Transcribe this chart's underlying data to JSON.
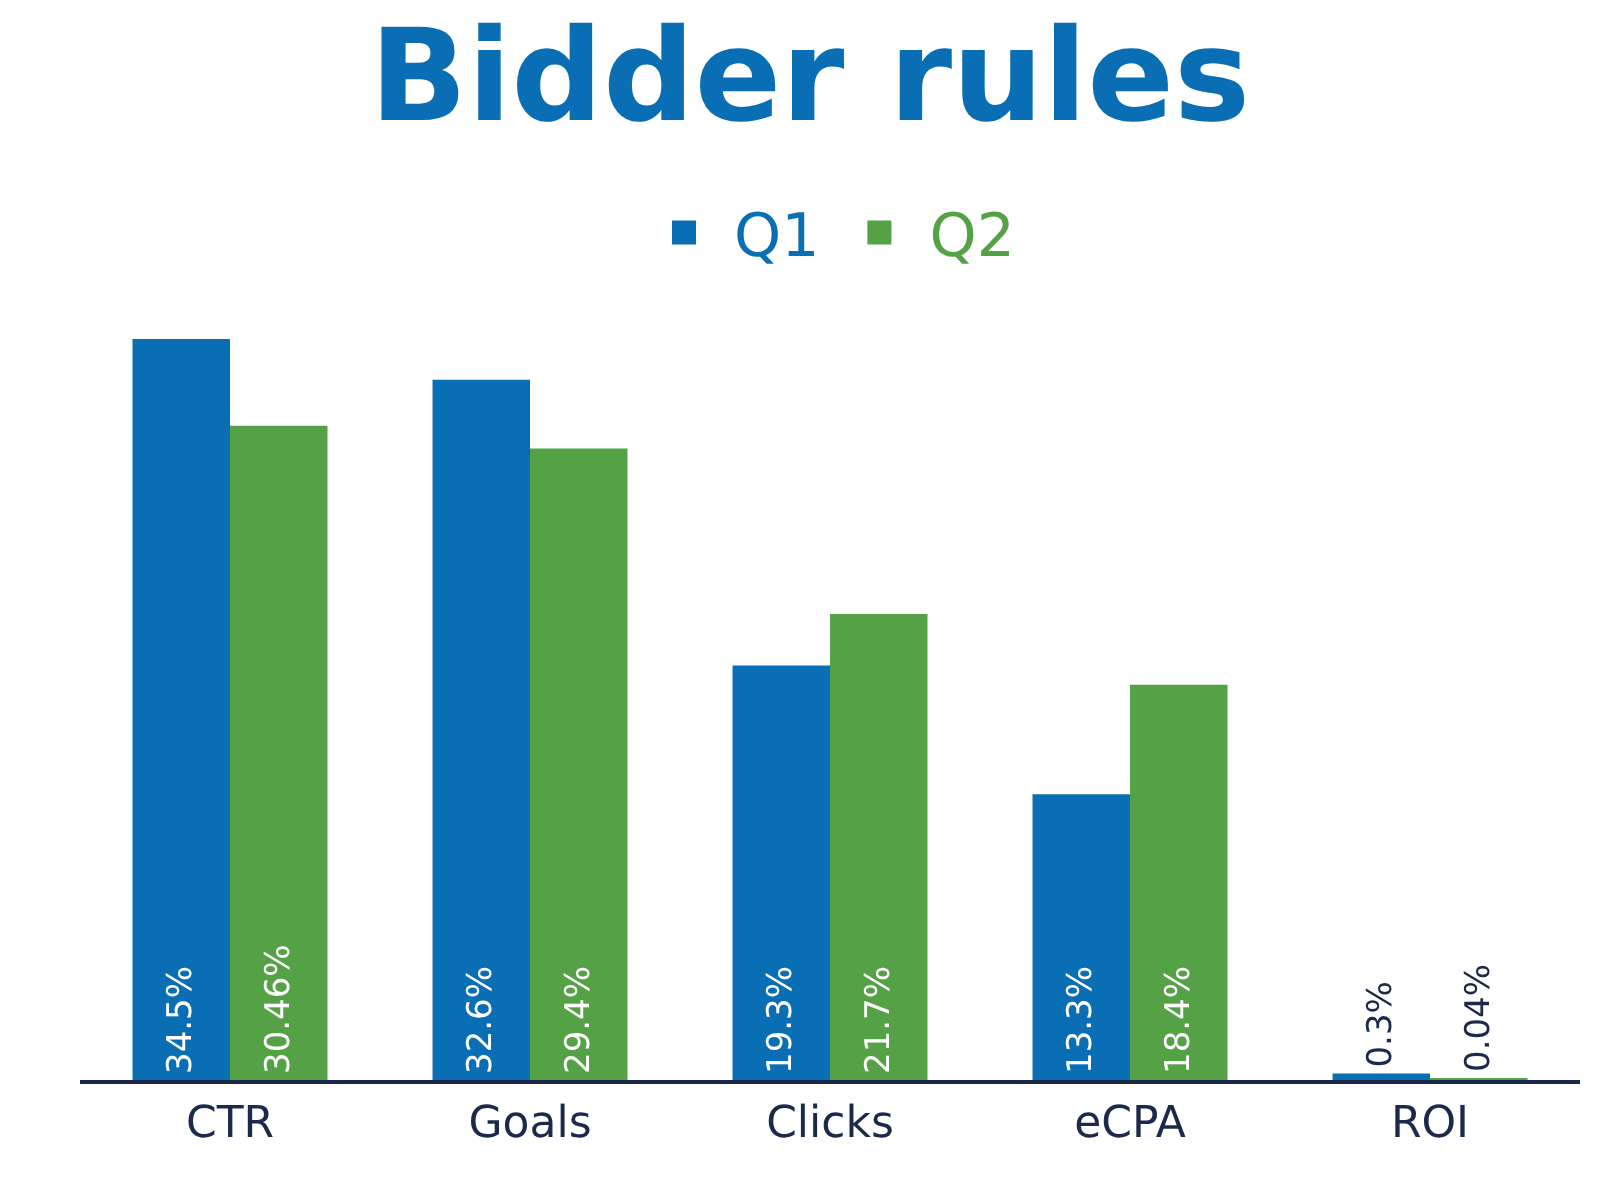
{
  "chart_data": {
    "type": "bar",
    "title": "Bidder rules",
    "categories": [
      "CTR",
      "Goals",
      "Clicks",
      "eCPA",
      "ROI"
    ],
    "series": [
      {
        "name": "Q1",
        "color": "#0a6eb4",
        "values": [
          34.5,
          32.6,
          19.3,
          13.3,
          0.3
        ],
        "value_labels": [
          "34.5%",
          "32.6%",
          "19.3%",
          "13.3%",
          "0.3%"
        ]
      },
      {
        "name": "Q2",
        "color": "#55a146",
        "values": [
          30.46,
          29.4,
          21.7,
          18.4,
          0.04
        ],
        "value_labels": [
          "30.46%",
          "29.4%",
          "21.7%",
          "18.4%",
          "0.04%"
        ]
      }
    ],
    "legend": "top",
    "grid": false
  }
}
